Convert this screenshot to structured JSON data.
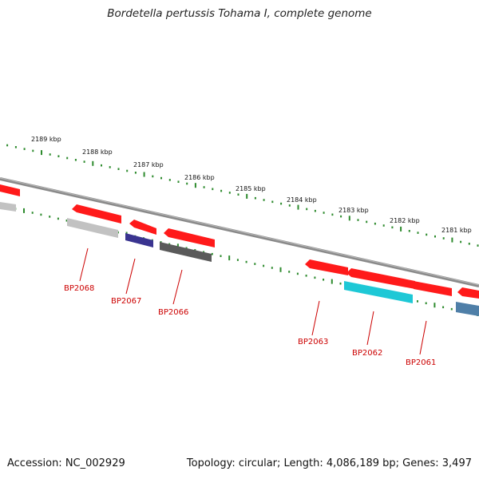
{
  "title": "Bordetella pertussis Tohama I, complete genome",
  "footer": {
    "accession": "Accession: NC_002929",
    "summary": "Topology: circular; Length: 4,086,189 bp; Genes: 3,497"
  },
  "scale_labels": [
    "2189 kbp",
    "2188 kbp",
    "2187 kbp",
    "2186 kbp",
    "2185 kbp",
    "2184 kbp",
    "2183 kbp",
    "2182 kbp",
    "2181 kbp"
  ],
  "gene_labels": [
    "BP2068",
    "BP2067",
    "BP2066",
    "BP2063",
    "BP2062",
    "BP2061"
  ],
  "colors": {
    "cds": "#ff1a1a",
    "label": "#cc0000",
    "backbone": "#8a8a8a",
    "scale_dots": "#2e8b2e",
    "gray_light": "#c2c2c2",
    "gray_dark": "#5a5a5a",
    "navy": "#3a3490",
    "cyan": "#1ec8d6",
    "steel": "#4f7fa8"
  }
}
